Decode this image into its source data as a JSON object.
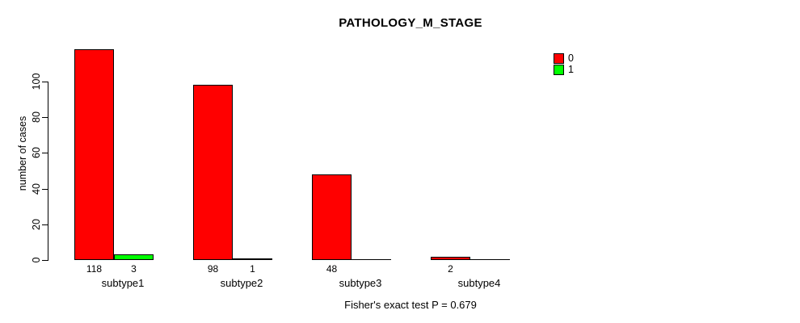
{
  "chart_data": {
    "type": "bar",
    "title": "PATHOLOGY_M_STAGE",
    "ylabel": "number of cases",
    "xlabel": "",
    "categories": [
      "subtype1",
      "subtype2",
      "subtype3",
      "subtype4"
    ],
    "series": [
      {
        "name": "0",
        "color": "#ff0000",
        "values": [
          118,
          98,
          48,
          2
        ],
        "bar_labels": [
          "118",
          "98",
          "48",
          "2"
        ]
      },
      {
        "name": "1",
        "color": "#00ff00",
        "values": [
          3,
          1,
          0,
          0
        ],
        "bar_labels": [
          "3",
          "1",
          "",
          ""
        ]
      }
    ],
    "y_ticks": [
      0,
      20,
      40,
      60,
      80,
      100
    ],
    "ylim": [
      0,
      120
    ],
    "grid": false,
    "legend_position": "top-right",
    "legend_items": [
      {
        "label": "0",
        "color": "#ff0000"
      },
      {
        "label": "1",
        "color": "#00ff00"
      }
    ],
    "annotation": "Fisher's exact test P = 0.679"
  }
}
